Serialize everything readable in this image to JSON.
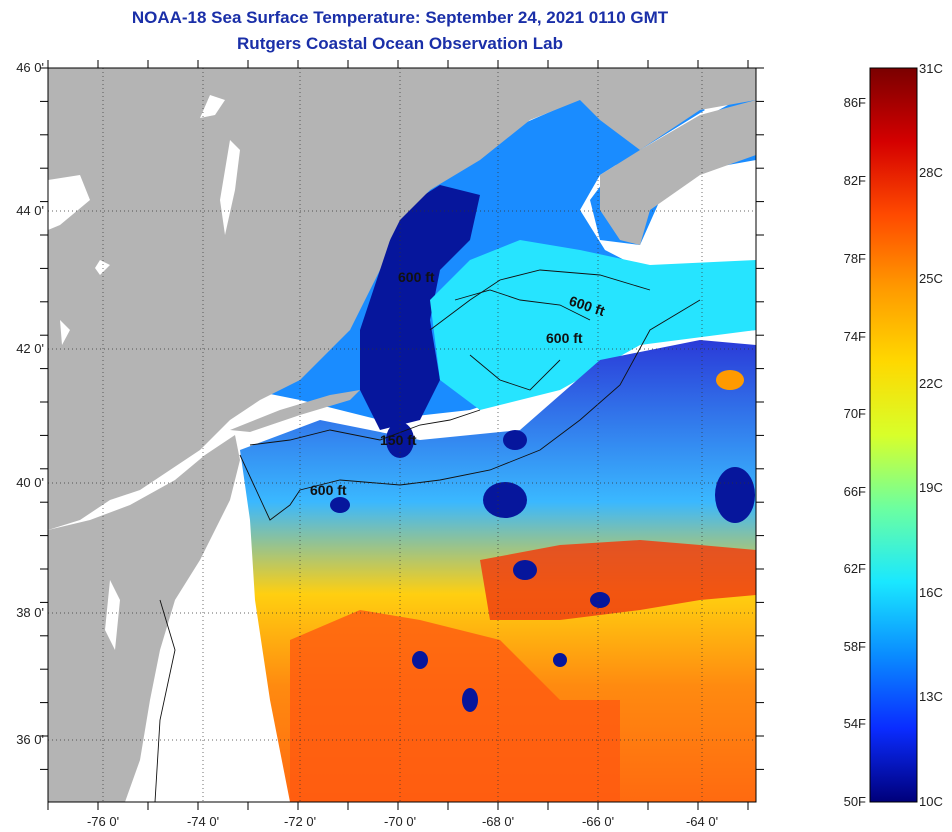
{
  "title": {
    "line1": "NOAA-18 Sea Surface Temperature:  September 24, 2021 0110 GMT",
    "line2": "Rutgers Coastal Ocean Observation Lab"
  },
  "map": {
    "lat_ticks": [
      "46 0'",
      "44 0'",
      "42 0'",
      "40 0'",
      "38 0'",
      "36 0'"
    ],
    "lon_ticks": [
      "-76 0'",
      "-74 0'",
      "-72 0'",
      "-70 0'",
      "-68 0'",
      "-66 0'",
      "-64 0'"
    ],
    "contour_labels": [
      "600 ft",
      "600 ft",
      "150 ft",
      "600 ft",
      "600 ft"
    ]
  },
  "colorbar": {
    "f_labels": [
      "86F",
      "82F",
      "78F",
      "74F",
      "70F",
      "66F",
      "62F",
      "58F",
      "54F",
      "50F"
    ],
    "c_labels": [
      "31C",
      "28C",
      "25C",
      "22C",
      "19C",
      "16C",
      "13C",
      "10C"
    ],
    "colors": [
      "#7a0000",
      "#d40000",
      "#ff4a00",
      "#ff9a00",
      "#ffd800",
      "#d8ff2a",
      "#6cffa0",
      "#1ae8ff",
      "#0a8cff",
      "#0a2cff",
      "#00007a"
    ]
  }
}
